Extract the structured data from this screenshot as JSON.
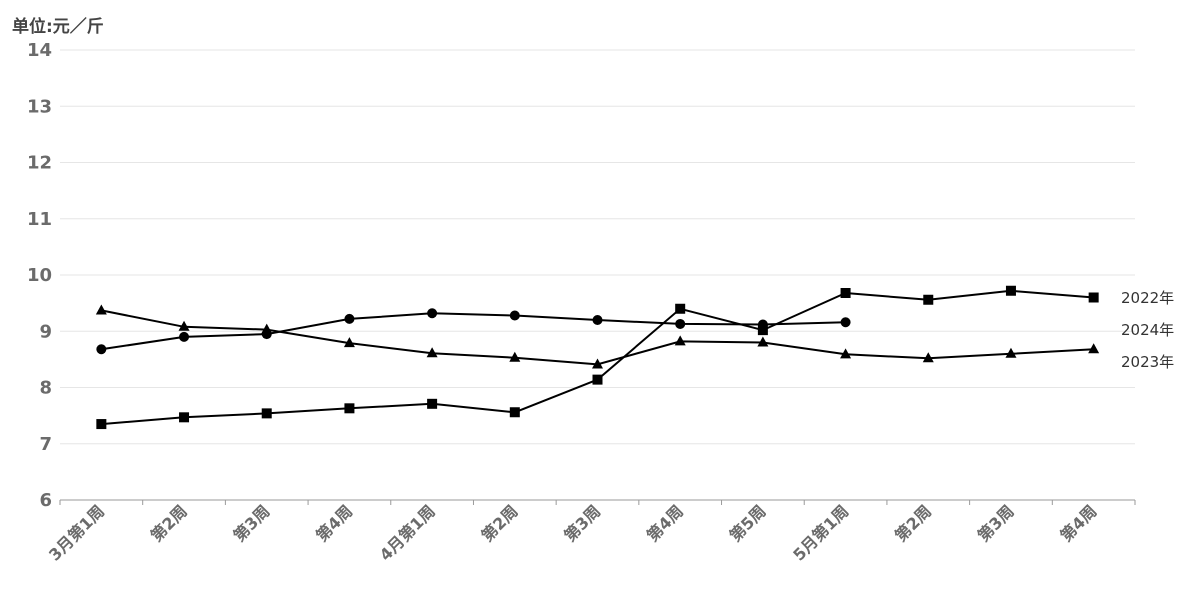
{
  "chart_data": {
    "type": "line",
    "ylabel": "单位:元／斤",
    "ylim": [
      6,
      14
    ],
    "yticks": [
      6,
      7,
      8,
      9,
      10,
      11,
      12,
      13,
      14
    ],
    "categories": [
      "3月第1周",
      "第2周",
      "第3周",
      "第4周",
      "4月第1周",
      "第2周",
      "第3周",
      "第4周",
      "第5周",
      "5月第1周",
      "第2周",
      "第3周",
      "第4周"
    ],
    "grid": true,
    "legend": "end-of-line labels",
    "series": [
      {
        "name": "2022年",
        "marker": "square",
        "color": "#000000",
        "values": [
          7.35,
          7.47,
          7.54,
          7.63,
          7.71,
          7.56,
          8.14,
          9.4,
          9.02,
          9.68,
          9.56,
          9.72,
          9.6
        ]
      },
      {
        "name": "2024年",
        "marker": "circle",
        "color": "#000000",
        "values": [
          8.68,
          8.9,
          8.95,
          9.22,
          9.32,
          9.28,
          9.2,
          9.13,
          9.12,
          9.16,
          null,
          null,
          null
        ]
      },
      {
        "name": "2023年",
        "marker": "triangle",
        "color": "#000000",
        "values": [
          9.37,
          9.08,
          9.03,
          8.79,
          8.61,
          8.53,
          8.41,
          8.82,
          8.8,
          8.59,
          8.52,
          8.6,
          8.68
        ]
      }
    ]
  }
}
